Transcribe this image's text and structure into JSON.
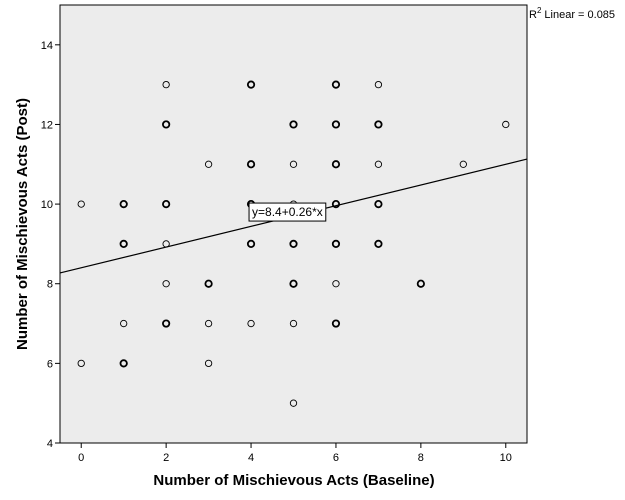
{
  "chart_data": {
    "type": "scatter",
    "xlabel": "Number of Mischievous Acts (Baseline)",
    "ylabel": "Number of Mischievous Acts (Post)",
    "xlim": [
      -0.5,
      10.5
    ],
    "ylim": [
      4,
      15
    ],
    "xticks": [
      0,
      2,
      4,
      6,
      8,
      10
    ],
    "yticks": [
      4,
      6,
      8,
      10,
      12,
      14
    ],
    "xtick_labels": [
      "0",
      "2",
      "4",
      "6",
      "8",
      "10"
    ],
    "ytick_labels": [
      "4",
      "6",
      "8",
      "10",
      "12",
      "14"
    ],
    "points": [
      {
        "x": 0,
        "y": 10,
        "n": 1
      },
      {
        "x": 0,
        "y": 6,
        "n": 1
      },
      {
        "x": 1,
        "y": 10,
        "n": 2
      },
      {
        "x": 1,
        "y": 9,
        "n": 2
      },
      {
        "x": 1,
        "y": 7,
        "n": 1
      },
      {
        "x": 1,
        "y": 6,
        "n": 2
      },
      {
        "x": 2,
        "y": 13,
        "n": 1
      },
      {
        "x": 2,
        "y": 12,
        "n": 2
      },
      {
        "x": 2,
        "y": 10,
        "n": 2
      },
      {
        "x": 2,
        "y": 9,
        "n": 1
      },
      {
        "x": 2,
        "y": 8,
        "n": 1
      },
      {
        "x": 2,
        "y": 7,
        "n": 2
      },
      {
        "x": 3,
        "y": 11,
        "n": 1
      },
      {
        "x": 3,
        "y": 8,
        "n": 2
      },
      {
        "x": 3,
        "y": 7,
        "n": 1
      },
      {
        "x": 3,
        "y": 6,
        "n": 1
      },
      {
        "x": 4,
        "y": 13,
        "n": 2
      },
      {
        "x": 4,
        "y": 11,
        "n": 2
      },
      {
        "x": 4,
        "y": 10,
        "n": 2
      },
      {
        "x": 4,
        "y": 9,
        "n": 2
      },
      {
        "x": 4,
        "y": 7,
        "n": 1
      },
      {
        "x": 5,
        "y": 12,
        "n": 2
      },
      {
        "x": 5,
        "y": 11,
        "n": 1
      },
      {
        "x": 5,
        "y": 10,
        "n": 1
      },
      {
        "x": 5,
        "y": 9,
        "n": 2
      },
      {
        "x": 5,
        "y": 8,
        "n": 2
      },
      {
        "x": 5,
        "y": 7,
        "n": 1
      },
      {
        "x": 5,
        "y": 5,
        "n": 1
      },
      {
        "x": 6,
        "y": 13,
        "n": 2
      },
      {
        "x": 6,
        "y": 12,
        "n": 2
      },
      {
        "x": 6,
        "y": 11,
        "n": 2
      },
      {
        "x": 6,
        "y": 10,
        "n": 2
      },
      {
        "x": 6,
        "y": 9,
        "n": 2
      },
      {
        "x": 6,
        "y": 8,
        "n": 1
      },
      {
        "x": 6,
        "y": 7,
        "n": 2
      },
      {
        "x": 7,
        "y": 13,
        "n": 1
      },
      {
        "x": 7,
        "y": 12,
        "n": 2
      },
      {
        "x": 7,
        "y": 11,
        "n": 1
      },
      {
        "x": 7,
        "y": 10,
        "n": 2
      },
      {
        "x": 7,
        "y": 9,
        "n": 2
      },
      {
        "x": 8,
        "y": 8,
        "n": 2
      },
      {
        "x": 9,
        "y": 11,
        "n": 1
      },
      {
        "x": 10,
        "y": 12,
        "n": 1
      }
    ],
    "fit_line": {
      "type": "linear",
      "intercept": 8.4,
      "slope": 0.26
    },
    "fit_equation_label": "y=8.4+0.26*x",
    "fit_equation_position": {
      "x": 4.0,
      "y": 9.8
    },
    "r2_label": "Linear = 0.085",
    "r2_prefix": "R",
    "r2_superscript": "2",
    "grid": false,
    "colors": {
      "plot_background": "#ececec",
      "marker_stroke": "#000000",
      "fit_line": "#000000",
      "frame": "#000000"
    }
  }
}
